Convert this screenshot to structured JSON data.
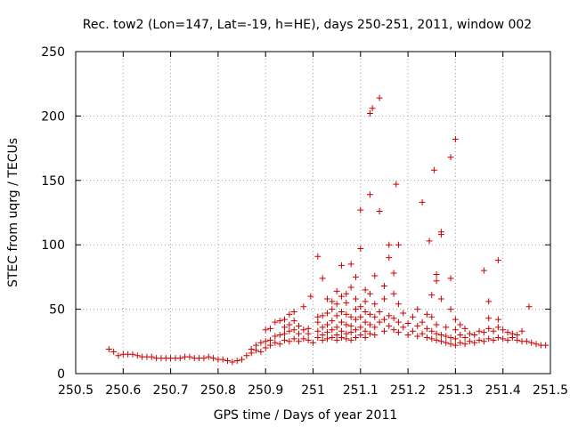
{
  "chart_data": {
    "type": "scatter",
    "title": "Rec. tow2 (Lon=147, Lat=-19, h=HE), days 250-251, 2011, window 002",
    "xlabel": "GPS time / Days of year 2011",
    "ylabel": "STEC from uqrg / TECUs",
    "xlim": [
      250.5,
      251.5
    ],
    "ylim": [
      0,
      250
    ],
    "xticks": [
      250.5,
      250.6,
      250.7,
      250.8,
      250.9,
      251.0,
      251.1,
      251.2,
      251.3,
      251.4,
      251.5
    ],
    "xtick_labels": [
      "250.5",
      "250.6",
      "250.7",
      "250.8",
      "250.9",
      "251",
      "251.1",
      "251.2",
      "251.3",
      "251.4",
      "251.5"
    ],
    "yticks": [
      0,
      50,
      100,
      150,
      200,
      250
    ],
    "ytick_labels": [
      "0",
      "50",
      "100",
      "150",
      "200",
      "250"
    ],
    "grid": true,
    "marker": "+",
    "color": "#cc0000",
    "series": [
      {
        "name": "STEC",
        "points": [
          [
            250.57,
            19
          ],
          [
            250.58,
            17
          ],
          [
            250.59,
            14
          ],
          [
            250.6,
            15
          ],
          [
            250.61,
            15
          ],
          [
            250.62,
            15
          ],
          [
            250.63,
            14
          ],
          [
            250.64,
            13
          ],
          [
            250.65,
            13
          ],
          [
            250.66,
            13
          ],
          [
            250.67,
            12
          ],
          [
            250.68,
            12
          ],
          [
            250.69,
            12
          ],
          [
            250.7,
            12
          ],
          [
            250.71,
            12
          ],
          [
            250.72,
            12
          ],
          [
            250.73,
            13
          ],
          [
            250.74,
            13
          ],
          [
            250.75,
            12
          ],
          [
            250.76,
            12
          ],
          [
            250.77,
            12
          ],
          [
            250.78,
            13
          ],
          [
            250.79,
            12
          ],
          [
            250.8,
            11
          ],
          [
            250.81,
            11
          ],
          [
            250.82,
            10
          ],
          [
            250.83,
            9
          ],
          [
            250.84,
            10
          ],
          [
            250.85,
            11
          ],
          [
            250.86,
            14
          ],
          [
            250.87,
            16
          ],
          [
            250.87,
            19
          ],
          [
            250.88,
            18
          ],
          [
            250.88,
            22
          ],
          [
            250.89,
            17
          ],
          [
            250.89,
            24
          ],
          [
            250.9,
            20
          ],
          [
            250.9,
            25
          ],
          [
            250.9,
            34
          ],
          [
            250.91,
            22
          ],
          [
            250.91,
            26
          ],
          [
            250.91,
            35
          ],
          [
            250.92,
            24
          ],
          [
            250.92,
            29
          ],
          [
            250.92,
            40
          ],
          [
            250.93,
            23
          ],
          [
            250.93,
            30
          ],
          [
            250.93,
            41
          ],
          [
            250.94,
            26
          ],
          [
            250.94,
            31
          ],
          [
            250.94,
            36
          ],
          [
            250.94,
            42
          ],
          [
            250.95,
            25
          ],
          [
            250.95,
            33
          ],
          [
            250.95,
            38
          ],
          [
            250.95,
            46
          ],
          [
            250.96,
            27
          ],
          [
            250.96,
            34
          ],
          [
            250.96,
            41
          ],
          [
            250.96,
            48
          ],
          [
            250.97,
            25
          ],
          [
            250.97,
            31
          ],
          [
            250.97,
            37
          ],
          [
            250.98,
            27
          ],
          [
            250.98,
            34
          ],
          [
            250.98,
            52
          ],
          [
            250.99,
            26
          ],
          [
            250.99,
            31
          ],
          [
            250.99,
            35
          ],
          [
            250.995,
            60
          ],
          [
            251.0,
            24
          ],
          [
            251.01,
            28
          ],
          [
            251.01,
            33
          ],
          [
            251.01,
            40
          ],
          [
            251.01,
            44
          ],
          [
            251.01,
            91
          ],
          [
            251.02,
            26
          ],
          [
            251.02,
            30
          ],
          [
            251.02,
            36
          ],
          [
            251.02,
            45
          ],
          [
            251.02,
            74
          ],
          [
            251.03,
            27
          ],
          [
            251.03,
            32
          ],
          [
            251.03,
            38
          ],
          [
            251.03,
            47
          ],
          [
            251.03,
            58
          ],
          [
            251.04,
            28
          ],
          [
            251.04,
            34
          ],
          [
            251.04,
            41
          ],
          [
            251.04,
            50
          ],
          [
            251.04,
            56
          ],
          [
            251.05,
            26
          ],
          [
            251.05,
            30
          ],
          [
            251.05,
            36
          ],
          [
            251.05,
            45
          ],
          [
            251.05,
            54
          ],
          [
            251.05,
            64
          ],
          [
            251.06,
            28
          ],
          [
            251.06,
            33
          ],
          [
            251.06,
            40
          ],
          [
            251.06,
            48
          ],
          [
            251.06,
            60
          ],
          [
            251.06,
            84
          ],
          [
            251.07,
            27
          ],
          [
            251.07,
            31
          ],
          [
            251.07,
            38
          ],
          [
            251.07,
            46
          ],
          [
            251.07,
            55
          ],
          [
            251.07,
            62
          ],
          [
            251.08,
            26
          ],
          [
            251.08,
            32
          ],
          [
            251.08,
            37
          ],
          [
            251.08,
            44
          ],
          [
            251.08,
            67
          ],
          [
            251.08,
            85
          ],
          [
            251.09,
            28
          ],
          [
            251.09,
            34
          ],
          [
            251.09,
            42
          ],
          [
            251.09,
            50
          ],
          [
            251.09,
            58
          ],
          [
            251.09,
            75
          ],
          [
            251.1,
            30
          ],
          [
            251.1,
            36
          ],
          [
            251.1,
            44
          ],
          [
            251.1,
            52
          ],
          [
            251.1,
            97
          ],
          [
            251.1,
            127
          ],
          [
            251.11,
            28
          ],
          [
            251.11,
            33
          ],
          [
            251.11,
            40
          ],
          [
            251.11,
            48
          ],
          [
            251.11,
            56
          ],
          [
            251.11,
            65
          ],
          [
            251.12,
            31
          ],
          [
            251.12,
            38
          ],
          [
            251.12,
            46
          ],
          [
            251.12,
            62
          ],
          [
            251.12,
            139
          ],
          [
            251.12,
            202
          ],
          [
            251.125,
            206
          ],
          [
            251.13,
            30
          ],
          [
            251.13,
            36
          ],
          [
            251.13,
            44
          ],
          [
            251.13,
            54
          ],
          [
            251.13,
            76
          ],
          [
            251.14,
            126
          ],
          [
            251.14,
            214
          ],
          [
            251.14,
            40
          ],
          [
            251.14,
            48
          ],
          [
            251.15,
            33
          ],
          [
            251.15,
            42
          ],
          [
            251.15,
            58
          ],
          [
            251.15,
            68
          ],
          [
            251.16,
            100
          ],
          [
            251.16,
            90
          ],
          [
            251.16,
            45
          ],
          [
            251.16,
            37
          ],
          [
            251.17,
            34
          ],
          [
            251.17,
            43
          ],
          [
            251.17,
            62
          ],
          [
            251.17,
            78
          ],
          [
            251.175,
            147
          ],
          [
            251.18,
            32
          ],
          [
            251.18,
            40
          ],
          [
            251.18,
            54
          ],
          [
            251.18,
            100
          ],
          [
            251.19,
            36
          ],
          [
            251.19,
            47
          ],
          [
            251.2,
            30
          ],
          [
            251.2,
            39
          ],
          [
            251.21,
            33
          ],
          [
            251.21,
            44
          ],
          [
            251.22,
            29
          ],
          [
            251.22,
            37
          ],
          [
            251.22,
            50
          ],
          [
            251.23,
            133
          ],
          [
            251.23,
            31
          ],
          [
            251.23,
            40
          ],
          [
            251.24,
            28
          ],
          [
            251.24,
            35
          ],
          [
            251.24,
            46
          ],
          [
            251.245,
            103
          ],
          [
            251.25,
            27
          ],
          [
            251.25,
            33
          ],
          [
            251.25,
            44
          ],
          [
            251.25,
            61
          ],
          [
            251.255,
            158
          ],
          [
            251.26,
            26
          ],
          [
            251.26,
            31
          ],
          [
            251.26,
            38
          ],
          [
            251.26,
            72
          ],
          [
            251.26,
            77
          ],
          [
            251.27,
            25
          ],
          [
            251.27,
            30
          ],
          [
            251.27,
            58
          ],
          [
            251.27,
            108
          ],
          [
            251.27,
            110
          ],
          [
            251.28,
            24
          ],
          [
            251.28,
            29
          ],
          [
            251.28,
            36
          ],
          [
            251.29,
            23
          ],
          [
            251.29,
            28
          ],
          [
            251.29,
            50
          ],
          [
            251.29,
            74
          ],
          [
            251.29,
            168
          ],
          [
            251.3,
            22
          ],
          [
            251.3,
            27
          ],
          [
            251.3,
            34
          ],
          [
            251.3,
            42
          ],
          [
            251.3,
            182
          ],
          [
            251.31,
            24
          ],
          [
            251.31,
            30
          ],
          [
            251.31,
            38
          ],
          [
            251.32,
            23
          ],
          [
            251.32,
            28
          ],
          [
            251.32,
            35
          ],
          [
            251.33,
            25
          ],
          [
            251.33,
            31
          ],
          [
            251.34,
            24
          ],
          [
            251.34,
            30
          ],
          [
            251.35,
            26
          ],
          [
            251.35,
            33
          ],
          [
            251.36,
            25
          ],
          [
            251.36,
            32
          ],
          [
            251.36,
            80
          ],
          [
            251.37,
            27
          ],
          [
            251.37,
            35
          ],
          [
            251.37,
            43
          ],
          [
            251.37,
            56
          ],
          [
            251.38,
            26
          ],
          [
            251.38,
            33
          ],
          [
            251.39,
            28
          ],
          [
            251.39,
            36
          ],
          [
            251.39,
            42
          ],
          [
            251.39,
            88
          ],
          [
            251.4,
            27
          ],
          [
            251.4,
            34
          ],
          [
            251.41,
            26
          ],
          [
            251.41,
            32
          ],
          [
            251.42,
            28
          ],
          [
            251.42,
            31
          ],
          [
            251.43,
            26
          ],
          [
            251.43,
            30
          ],
          [
            251.44,
            25
          ],
          [
            251.44,
            33
          ],
          [
            251.45,
            25
          ],
          [
            251.455,
            52
          ],
          [
            251.46,
            24
          ],
          [
            251.47,
            23
          ],
          [
            251.48,
            22
          ],
          [
            251.49,
            22
          ]
        ]
      }
    ]
  }
}
